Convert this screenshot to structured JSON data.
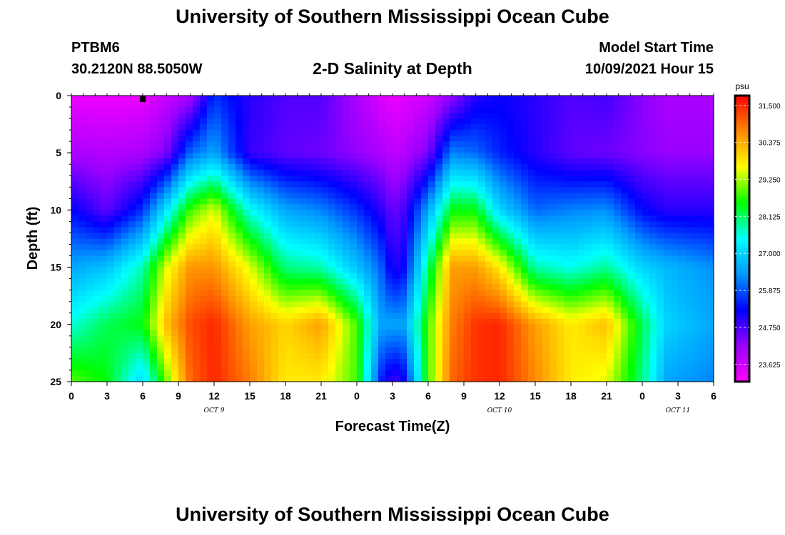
{
  "header": {
    "title": "University of Southern Mississippi Ocean Cube",
    "station": "PTBM6",
    "coords": "30.2120N  88.5050W",
    "subtitle": "2-D Salinity at Depth",
    "start_label": "Model Start Time",
    "start_value": "10/09/2021 Hour 15"
  },
  "footer": {
    "title": "University of Southern Mississippi Ocean Cube"
  },
  "chart_data": {
    "type": "heatmap",
    "title": "2-D Salinity at Depth",
    "xlabel": "Forecast Time(Z)",
    "ylabel": "Depth (ft)",
    "x_hours_range": [
      0,
      54
    ],
    "ylim": [
      0,
      25
    ],
    "x_ticks": [
      {
        "h": 0,
        "label": "0"
      },
      {
        "h": 3,
        "label": "3"
      },
      {
        "h": 6,
        "label": "6"
      },
      {
        "h": 9,
        "label": "9"
      },
      {
        "h": 12,
        "label": "12"
      },
      {
        "h": 15,
        "label": "15"
      },
      {
        "h": 18,
        "label": "18"
      },
      {
        "h": 21,
        "label": "21"
      },
      {
        "h": 24,
        "label": "0"
      },
      {
        "h": 27,
        "label": "3"
      },
      {
        "h": 30,
        "label": "6"
      },
      {
        "h": 33,
        "label": "9"
      },
      {
        "h": 36,
        "label": "12"
      },
      {
        "h": 39,
        "label": "15"
      },
      {
        "h": 42,
        "label": "18"
      },
      {
        "h": 45,
        "label": "21"
      },
      {
        "h": 48,
        "label": "0"
      },
      {
        "h": 51,
        "label": "3"
      },
      {
        "h": 54,
        "label": "6"
      }
    ],
    "date_labels": [
      {
        "h": 12,
        "label": "OCT 9"
      },
      {
        "h": 36,
        "label": "OCT 10"
      },
      {
        "h": 51,
        "label": "OCT 11"
      }
    ],
    "y_ticks": [
      0,
      5,
      10,
      15,
      20,
      25
    ],
    "marker_hour": 6,
    "colorbar": {
      "unit": "psu",
      "min": 23.1,
      "max": 31.8,
      "ticks": [
        "31.500",
        "30.375",
        "29.250",
        "28.125",
        "27.000",
        "25.875",
        "24.750",
        "23.625"
      ],
      "colors": [
        "#ff00ff",
        "#9900ff",
        "#0000ff",
        "#0099ff",
        "#00ffff",
        "#00ff00",
        "#ffff00",
        "#ff8800",
        "#ff0000"
      ]
    },
    "salinity_field": {
      "times_h": [
        0,
        3,
        6,
        8,
        10,
        12,
        15,
        18,
        21,
        24,
        26,
        27,
        28,
        30,
        32,
        34,
        36,
        39,
        42,
        45,
        48,
        50,
        54
      ],
      "depths_ft": [
        0,
        5,
        10,
        15,
        20,
        25
      ],
      "values_psu": [
        [
          23.3,
          23.3,
          23.3,
          23.7,
          24.0,
          25.6,
          25.0,
          24.7,
          24.7,
          24.0,
          23.5,
          23.3,
          23.4,
          23.6,
          24.2,
          25.0,
          25.2,
          25.0,
          24.7,
          24.8,
          24.3,
          24.0,
          24.0
        ],
        [
          24.0,
          23.9,
          24.0,
          24.4,
          26.0,
          26.5,
          24.9,
          24.6,
          24.5,
          24.2,
          24.0,
          23.8,
          23.9,
          24.4,
          26.2,
          26.0,
          25.5,
          25.0,
          24.6,
          24.5,
          24.3,
          24.2,
          24.2
        ],
        [
          25.3,
          24.6,
          25.6,
          27.2,
          28.8,
          29.5,
          27.5,
          26.5,
          26.2,
          25.6,
          25.0,
          24.5,
          24.8,
          26.5,
          28.5,
          28.5,
          27.0,
          26.0,
          26.2,
          26.3,
          25.3,
          25.0,
          25.0
        ],
        [
          26.5,
          26.8,
          27.8,
          29.5,
          30.6,
          30.6,
          29.5,
          28.0,
          27.8,
          26.8,
          26.0,
          25.0,
          25.3,
          28.0,
          30.5,
          30.5,
          29.8,
          27.8,
          27.5,
          27.9,
          27.0,
          26.7,
          26.3
        ],
        [
          27.6,
          28.2,
          28.5,
          30.2,
          31.2,
          31.5,
          30.5,
          30.0,
          30.5,
          28.8,
          26.5,
          26.5,
          26.5,
          28.8,
          30.8,
          31.4,
          31.5,
          30.5,
          29.8,
          30.2,
          28.2,
          27.0,
          26.5
        ],
        [
          28.9,
          28.5,
          27.0,
          29.0,
          31.0,
          31.5,
          30.8,
          29.8,
          29.8,
          28.8,
          25.5,
          24.8,
          25.2,
          28.8,
          31.0,
          31.4,
          31.5,
          30.7,
          29.8,
          29.5,
          28.0,
          26.5,
          26.2
        ]
      ]
    }
  }
}
